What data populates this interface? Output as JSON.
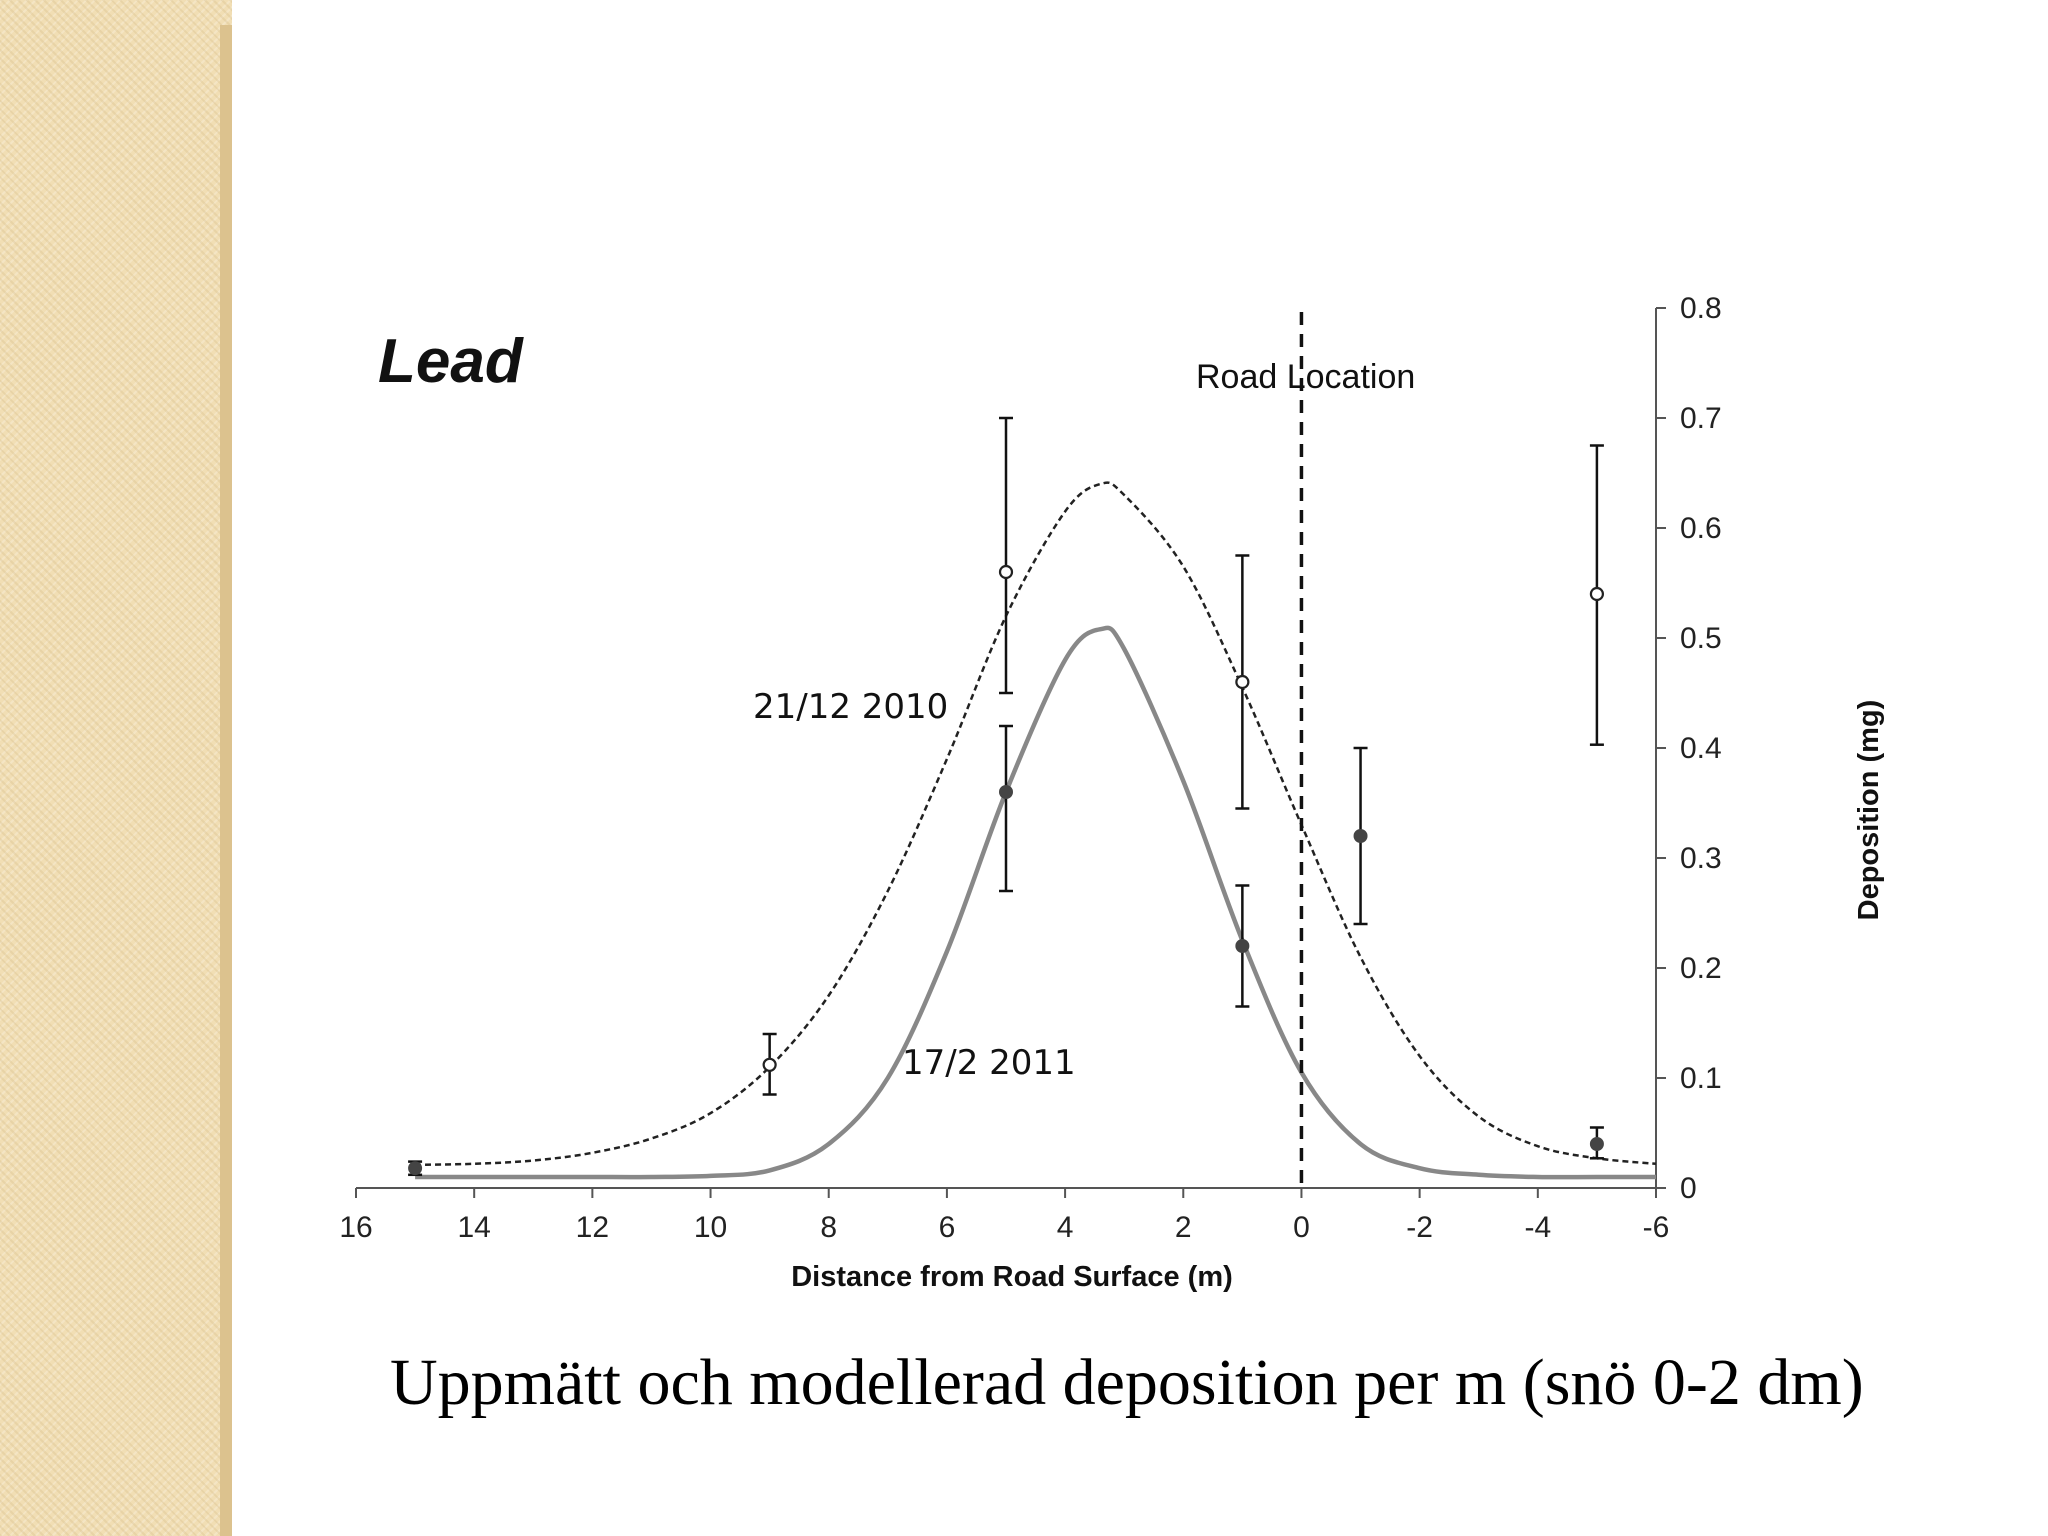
{
  "caption": "Uppmätt och modellerad deposition  per m (snö 0-2 dm)",
  "chart_data": {
    "type": "scatter",
    "title": "Lead",
    "xlabel": "Distance from Road Surface (m)",
    "ylabel": "Deposition (mg)",
    "xlim": [
      16,
      -6
    ],
    "ylim": [
      0,
      0.8
    ],
    "x_ticks": [
      16,
      14,
      12,
      10,
      8,
      6,
      4,
      2,
      0,
      -2,
      -4,
      -6
    ],
    "y_ticks": [
      0,
      0.1,
      0.2,
      0.3,
      0.4,
      0.5,
      0.6,
      0.7,
      0.8
    ],
    "y_axis_position": "right",
    "grid": false,
    "reference_line": {
      "x": 0,
      "label": "Road Location",
      "style": "dashed"
    },
    "series": [
      {
        "name": "21/12 2010",
        "marker": "open-circle",
        "color": "#222222",
        "points": [
          {
            "x": 9,
            "y": 0.112,
            "err_low": 0.085,
            "err_high": 0.14
          },
          {
            "x": 5,
            "y": 0.56,
            "err_low": 0.45,
            "err_high": 0.7
          },
          {
            "x": 1,
            "y": 0.46,
            "err_low": 0.345,
            "err_high": 0.575
          },
          {
            "x": -5,
            "y": 0.54,
            "err_low": 0.403,
            "err_high": 0.675
          }
        ],
        "model": {
          "style": "dashed",
          "color": "#222222",
          "x": [
            15,
            14,
            13,
            12,
            11,
            10,
            9,
            8,
            7,
            6,
            5,
            4,
            3.4,
            3,
            2,
            1,
            0,
            -1,
            -2,
            -3,
            -4,
            -5,
            -6
          ],
          "y": [
            0.021,
            0.022,
            0.025,
            0.032,
            0.045,
            0.068,
            0.11,
            0.175,
            0.27,
            0.39,
            0.52,
            0.615,
            0.64,
            0.63,
            0.565,
            0.455,
            0.33,
            0.21,
            0.12,
            0.065,
            0.038,
            0.027,
            0.022
          ]
        }
      },
      {
        "name": "17/2 2011",
        "marker": "filled-circle",
        "color": "#444444",
        "points": [
          {
            "x": 15,
            "y": 0.018,
            "err_low": 0.012,
            "err_high": 0.024
          },
          {
            "x": 5,
            "y": 0.36,
            "err_low": 0.27,
            "err_high": 0.42
          },
          {
            "x": 1,
            "y": 0.22,
            "err_low": 0.165,
            "err_high": 0.275
          },
          {
            "x": -1,
            "y": 0.32,
            "err_low": 0.24,
            "err_high": 0.4
          },
          {
            "x": -5,
            "y": 0.04,
            "err_low": 0.027,
            "err_high": 0.055
          }
        ],
        "model": {
          "style": "solid",
          "color": "#888888",
          "x": [
            15,
            14,
            13,
            12,
            11,
            10,
            9,
            8,
            7,
            6,
            5,
            4,
            3.4,
            3,
            2,
            1,
            0,
            -1,
            -2,
            -3,
            -4,
            -5,
            -6
          ],
          "y": [
            0.01,
            0.01,
            0.01,
            0.01,
            0.01,
            0.011,
            0.016,
            0.04,
            0.1,
            0.215,
            0.36,
            0.48,
            0.508,
            0.49,
            0.37,
            0.225,
            0.105,
            0.04,
            0.018,
            0.012,
            0.01,
            0.01,
            0.01
          ]
        }
      }
    ],
    "annotations": [
      {
        "text": "21/12 2010",
        "series": "21/12 2010"
      },
      {
        "text": "17/2 2011",
        "series": "17/2 2011"
      }
    ]
  }
}
